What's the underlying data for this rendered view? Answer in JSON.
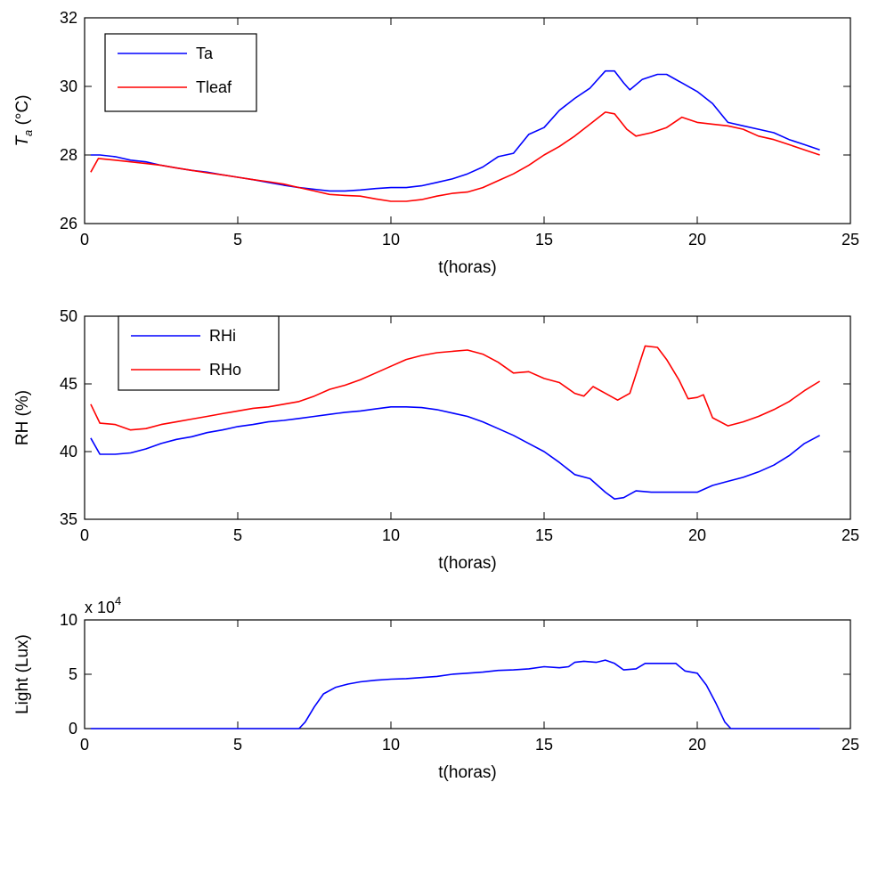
{
  "chart_data": [
    {
      "type": "line",
      "xlabel": "t(horas)",
      "ylabel_base": "T",
      "ylabel_sub": "a",
      "ylabel_unit": " (°C)",
      "xlim": [
        0,
        25
      ],
      "ylim": [
        26,
        32
      ],
      "xticks": [
        0,
        5,
        10,
        15,
        20,
        25
      ],
      "yticks": [
        26,
        28,
        30,
        32
      ],
      "legend_position": "top-left",
      "series": [
        {
          "name": "Ta",
          "color": "#0000ff",
          "points": [
            [
              0.2,
              28.0
            ],
            [
              0.5,
              28.0
            ],
            [
              1,
              27.95
            ],
            [
              1.5,
              27.85
            ],
            [
              2,
              27.8
            ],
            [
              2.5,
              27.7
            ],
            [
              3,
              27.62
            ],
            [
              3.5,
              27.55
            ],
            [
              4,
              27.5
            ],
            [
              4.5,
              27.42
            ],
            [
              5,
              27.35
            ],
            [
              5.5,
              27.28
            ],
            [
              6,
              27.2
            ],
            [
              6.5,
              27.12
            ],
            [
              7,
              27.05
            ],
            [
              7.5,
              27.0
            ],
            [
              8,
              26.95
            ],
            [
              8.5,
              26.95
            ],
            [
              9,
              26.98
            ],
            [
              9.5,
              27.02
            ],
            [
              10,
              27.05
            ],
            [
              10.5,
              27.05
            ],
            [
              11,
              27.1
            ],
            [
              11.5,
              27.2
            ],
            [
              12,
              27.3
            ],
            [
              12.5,
              27.45
            ],
            [
              13,
              27.65
            ],
            [
              13.5,
              27.95
            ],
            [
              14,
              28.05
            ],
            [
              14.5,
              28.6
            ],
            [
              15,
              28.8
            ],
            [
              15.5,
              29.3
            ],
            [
              16,
              29.65
            ],
            [
              16.5,
              29.95
            ],
            [
              17,
              30.45
            ],
            [
              17.3,
              30.45
            ],
            [
              17.6,
              30.1
            ],
            [
              17.8,
              29.9
            ],
            [
              18.2,
              30.2
            ],
            [
              18.7,
              30.35
            ],
            [
              19,
              30.35
            ],
            [
              19.5,
              30.1
            ],
            [
              20,
              29.85
            ],
            [
              20.5,
              29.5
            ],
            [
              21,
              28.95
            ],
            [
              21.5,
              28.85
            ],
            [
              22,
              28.75
            ],
            [
              22.5,
              28.65
            ],
            [
              23,
              28.45
            ],
            [
              23.5,
              28.3
            ],
            [
              24,
              28.15
            ]
          ]
        },
        {
          "name": "Tleaf",
          "color": "#ff0000",
          "points": [
            [
              0.2,
              27.5
            ],
            [
              0.45,
              27.9
            ],
            [
              1,
              27.85
            ],
            [
              1.5,
              27.8
            ],
            [
              2,
              27.75
            ],
            [
              2.5,
              27.7
            ],
            [
              3,
              27.62
            ],
            [
              3.5,
              27.55
            ],
            [
              4,
              27.48
            ],
            [
              4.5,
              27.42
            ],
            [
              5,
              27.35
            ],
            [
              5.5,
              27.28
            ],
            [
              6,
              27.22
            ],
            [
              6.5,
              27.15
            ],
            [
              7,
              27.05
            ],
            [
              7.5,
              26.95
            ],
            [
              8,
              26.85
            ],
            [
              8.5,
              26.82
            ],
            [
              9,
              26.8
            ],
            [
              9.5,
              26.72
            ],
            [
              10,
              26.65
            ],
            [
              10.5,
              26.65
            ],
            [
              11,
              26.7
            ],
            [
              11.5,
              26.8
            ],
            [
              12,
              26.88
            ],
            [
              12.5,
              26.92
            ],
            [
              13,
              27.05
            ],
            [
              13.5,
              27.25
            ],
            [
              14,
              27.45
            ],
            [
              14.5,
              27.7
            ],
            [
              15,
              28.0
            ],
            [
              15.5,
              28.25
            ],
            [
              16,
              28.55
            ],
            [
              16.5,
              28.9
            ],
            [
              17,
              29.25
            ],
            [
              17.3,
              29.2
            ],
            [
              17.7,
              28.75
            ],
            [
              18,
              28.55
            ],
            [
              18.5,
              28.65
            ],
            [
              19,
              28.8
            ],
            [
              19.5,
              29.1
            ],
            [
              20,
              28.95
            ],
            [
              20.5,
              28.9
            ],
            [
              21,
              28.85
            ],
            [
              21.5,
              28.75
            ],
            [
              22,
              28.55
            ],
            [
              22.5,
              28.45
            ],
            [
              23,
              28.3
            ],
            [
              23.5,
              28.15
            ],
            [
              24,
              28.0
            ]
          ]
        }
      ]
    },
    {
      "type": "line",
      "xlabel": "t(horas)",
      "ylabel": "RH (%)",
      "xlim": [
        0,
        25
      ],
      "ylim": [
        35,
        50
      ],
      "xticks": [
        0,
        5,
        10,
        15,
        20,
        25
      ],
      "yticks": [
        35,
        40,
        45,
        50
      ],
      "legend_position": "top-left",
      "series": [
        {
          "name": "RHi",
          "color": "#0000ff",
          "points": [
            [
              0.2,
              41.0
            ],
            [
              0.5,
              39.8
            ],
            [
              1,
              39.8
            ],
            [
              1.5,
              39.9
            ],
            [
              2,
              40.2
            ],
            [
              2.5,
              40.6
            ],
            [
              3,
              40.9
            ],
            [
              3.5,
              41.1
            ],
            [
              4,
              41.4
            ],
            [
              4.5,
              41.6
            ],
            [
              5,
              41.85
            ],
            [
              5.5,
              42.0
            ],
            [
              6,
              42.2
            ],
            [
              6.5,
              42.3
            ],
            [
              7,
              42.45
            ],
            [
              7.5,
              42.6
            ],
            [
              8,
              42.75
            ],
            [
              8.5,
              42.9
            ],
            [
              9,
              43.0
            ],
            [
              9.5,
              43.15
            ],
            [
              10,
              43.3
            ],
            [
              10.5,
              43.3
            ],
            [
              11,
              43.25
            ],
            [
              11.5,
              43.1
            ],
            [
              12,
              42.85
            ],
            [
              12.5,
              42.6
            ],
            [
              13,
              42.2
            ],
            [
              13.5,
              41.7
            ],
            [
              14,
              41.2
            ],
            [
              14.5,
              40.6
            ],
            [
              15,
              40.0
            ],
            [
              15.5,
              39.2
            ],
            [
              16,
              38.3
            ],
            [
              16.5,
              38.0
            ],
            [
              17,
              37.0
            ],
            [
              17.3,
              36.5
            ],
            [
              17.6,
              36.6
            ],
            [
              18,
              37.1
            ],
            [
              18.5,
              37.0
            ],
            [
              19,
              37.0
            ],
            [
              19.5,
              37.0
            ],
            [
              20,
              37.0
            ],
            [
              20.5,
              37.5
            ],
            [
              21,
              37.8
            ],
            [
              21.5,
              38.1
            ],
            [
              22,
              38.5
            ],
            [
              22.5,
              39.0
            ],
            [
              23,
              39.7
            ],
            [
              23.5,
              40.6
            ],
            [
              24,
              41.2
            ]
          ]
        },
        {
          "name": "RHo",
          "color": "#ff0000",
          "points": [
            [
              0.2,
              43.5
            ],
            [
              0.5,
              42.1
            ],
            [
              1,
              42.0
            ],
            [
              1.5,
              41.6
            ],
            [
              2,
              41.7
            ],
            [
              2.5,
              42.0
            ],
            [
              3,
              42.2
            ],
            [
              3.5,
              42.4
            ],
            [
              4,
              42.6
            ],
            [
              4.5,
              42.8
            ],
            [
              5,
              43.0
            ],
            [
              5.5,
              43.2
            ],
            [
              6,
              43.3
            ],
            [
              6.5,
              43.5
            ],
            [
              7,
              43.7
            ],
            [
              7.5,
              44.1
            ],
            [
              8,
              44.6
            ],
            [
              8.5,
              44.9
            ],
            [
              9,
              45.3
            ],
            [
              9.5,
              45.8
            ],
            [
              10,
              46.3
            ],
            [
              10.5,
              46.8
            ],
            [
              11,
              47.1
            ],
            [
              11.5,
              47.3
            ],
            [
              12,
              47.4
            ],
            [
              12.5,
              47.5
            ],
            [
              13,
              47.2
            ],
            [
              13.5,
              46.6
            ],
            [
              14,
              45.8
            ],
            [
              14.5,
              45.9
            ],
            [
              15,
              45.4
            ],
            [
              15.5,
              45.1
            ],
            [
              16,
              44.3
            ],
            [
              16.3,
              44.1
            ],
            [
              16.6,
              44.8
            ],
            [
              17,
              44.3
            ],
            [
              17.4,
              43.8
            ],
            [
              17.8,
              44.3
            ],
            [
              18,
              45.7
            ],
            [
              18.3,
              47.8
            ],
            [
              18.7,
              47.7
            ],
            [
              19,
              46.8
            ],
            [
              19.4,
              45.3
            ],
            [
              19.7,
              43.9
            ],
            [
              20,
              44.0
            ],
            [
              20.2,
              44.2
            ],
            [
              20.5,
              42.5
            ],
            [
              21,
              41.9
            ],
            [
              21.5,
              42.2
            ],
            [
              22,
              42.6
            ],
            [
              22.5,
              43.1
            ],
            [
              23,
              43.7
            ],
            [
              23.5,
              44.5
            ],
            [
              24,
              45.2
            ]
          ]
        }
      ]
    },
    {
      "type": "line",
      "xlabel": "t(horas)",
      "ylabel": "Light (Lux)",
      "multiplier_label": "x 10",
      "multiplier_exp": "4",
      "xlim": [
        0,
        25
      ],
      "ylim": [
        0,
        10
      ],
      "xticks": [
        0,
        5,
        10,
        15,
        20,
        25
      ],
      "yticks": [
        0,
        5,
        10
      ],
      "series": [
        {
          "color": "#0000ff",
          "points": [
            [
              0.2,
              0
            ],
            [
              7.0,
              0
            ],
            [
              7.2,
              0.6
            ],
            [
              7.5,
              2.0
            ],
            [
              7.8,
              3.2
            ],
            [
              8.2,
              3.8
            ],
            [
              8.6,
              4.1
            ],
            [
              9,
              4.3
            ],
            [
              9.5,
              4.45
            ],
            [
              10,
              4.55
            ],
            [
              10.5,
              4.6
            ],
            [
              11,
              4.7
            ],
            [
              11.5,
              4.8
            ],
            [
              12,
              5.0
            ],
            [
              12.5,
              5.1
            ],
            [
              13,
              5.2
            ],
            [
              13.5,
              5.35
            ],
            [
              14,
              5.4
            ],
            [
              14.5,
              5.5
            ],
            [
              15,
              5.7
            ],
            [
              15.5,
              5.6
            ],
            [
              15.8,
              5.7
            ],
            [
              16,
              6.1
            ],
            [
              16.3,
              6.2
            ],
            [
              16.7,
              6.1
            ],
            [
              17,
              6.3
            ],
            [
              17.3,
              6.0
            ],
            [
              17.6,
              5.4
            ],
            [
              18,
              5.5
            ],
            [
              18.3,
              6.0
            ],
            [
              18.7,
              6.0
            ],
            [
              19,
              6.0
            ],
            [
              19.3,
              6.0
            ],
            [
              19.6,
              5.3
            ],
            [
              20,
              5.1
            ],
            [
              20.3,
              4.0
            ],
            [
              20.6,
              2.4
            ],
            [
              20.9,
              0.6
            ],
            [
              21.1,
              0
            ],
            [
              24,
              0
            ]
          ]
        }
      ]
    }
  ]
}
